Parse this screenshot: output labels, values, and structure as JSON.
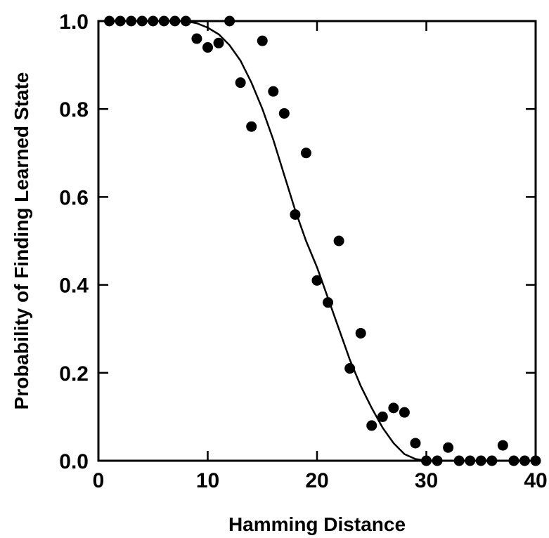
{
  "chart_data": {
    "type": "scatter",
    "xlabel": "Hamming Distance",
    "ylabel": "Probability of Finding Learned State",
    "xlim": [
      0,
      40
    ],
    "ylim": [
      0.0,
      1.0
    ],
    "x_ticks": [
      0,
      10,
      20,
      30,
      40
    ],
    "y_ticks": [
      0.0,
      0.2,
      0.4,
      0.6,
      0.8,
      1.0
    ],
    "x_tick_labels": [
      "0",
      "10",
      "20",
      "30",
      "40"
    ],
    "y_tick_labels": [
      "0.0",
      "0.2",
      "0.4",
      "0.6",
      "0.8",
      "1.0"
    ],
    "grid": false,
    "color": "#000000",
    "series": [
      {
        "kind": "points",
        "x": [
          1,
          2,
          3,
          4,
          5,
          6,
          7,
          8,
          9,
          10,
          11,
          12,
          13,
          14,
          15,
          16,
          17,
          18,
          19,
          20,
          21,
          22,
          23,
          24,
          25,
          26,
          27,
          28,
          29,
          30,
          31,
          32,
          33,
          34,
          35,
          36,
          37,
          38,
          39,
          40
        ],
        "y": [
          1.0,
          1.0,
          1.0,
          1.0,
          1.0,
          1.0,
          1.0,
          1.0,
          0.96,
          0.94,
          0.95,
          1.0,
          0.86,
          0.76,
          0.955,
          0.84,
          0.79,
          0.56,
          0.7,
          0.41,
          0.36,
          0.5,
          0.21,
          0.29,
          0.08,
          0.1,
          0.12,
          0.11,
          0.04,
          0.0,
          0.0,
          0.03,
          0.0,
          0.0,
          0.0,
          0.0,
          0.035,
          0.0,
          0.0,
          0.0
        ]
      },
      {
        "kind": "curve",
        "x": [
          0,
          2,
          4,
          6,
          8,
          9,
          10,
          11,
          12,
          13,
          14,
          15,
          16,
          17,
          18,
          19,
          20,
          21,
          22,
          23,
          24,
          25,
          26,
          27,
          28,
          29,
          30,
          32,
          34,
          36,
          38,
          40
        ],
        "y": [
          1.0,
          1.0,
          1.0,
          1.0,
          1.0,
          0.995,
          0.985,
          0.97,
          0.945,
          0.91,
          0.86,
          0.8,
          0.73,
          0.65,
          0.57,
          0.5,
          0.44,
          0.37,
          0.3,
          0.23,
          0.17,
          0.12,
          0.075,
          0.04,
          0.015,
          0.004,
          0.0,
          0.0,
          0.0,
          0.0,
          0.0,
          0.0
        ]
      }
    ]
  }
}
